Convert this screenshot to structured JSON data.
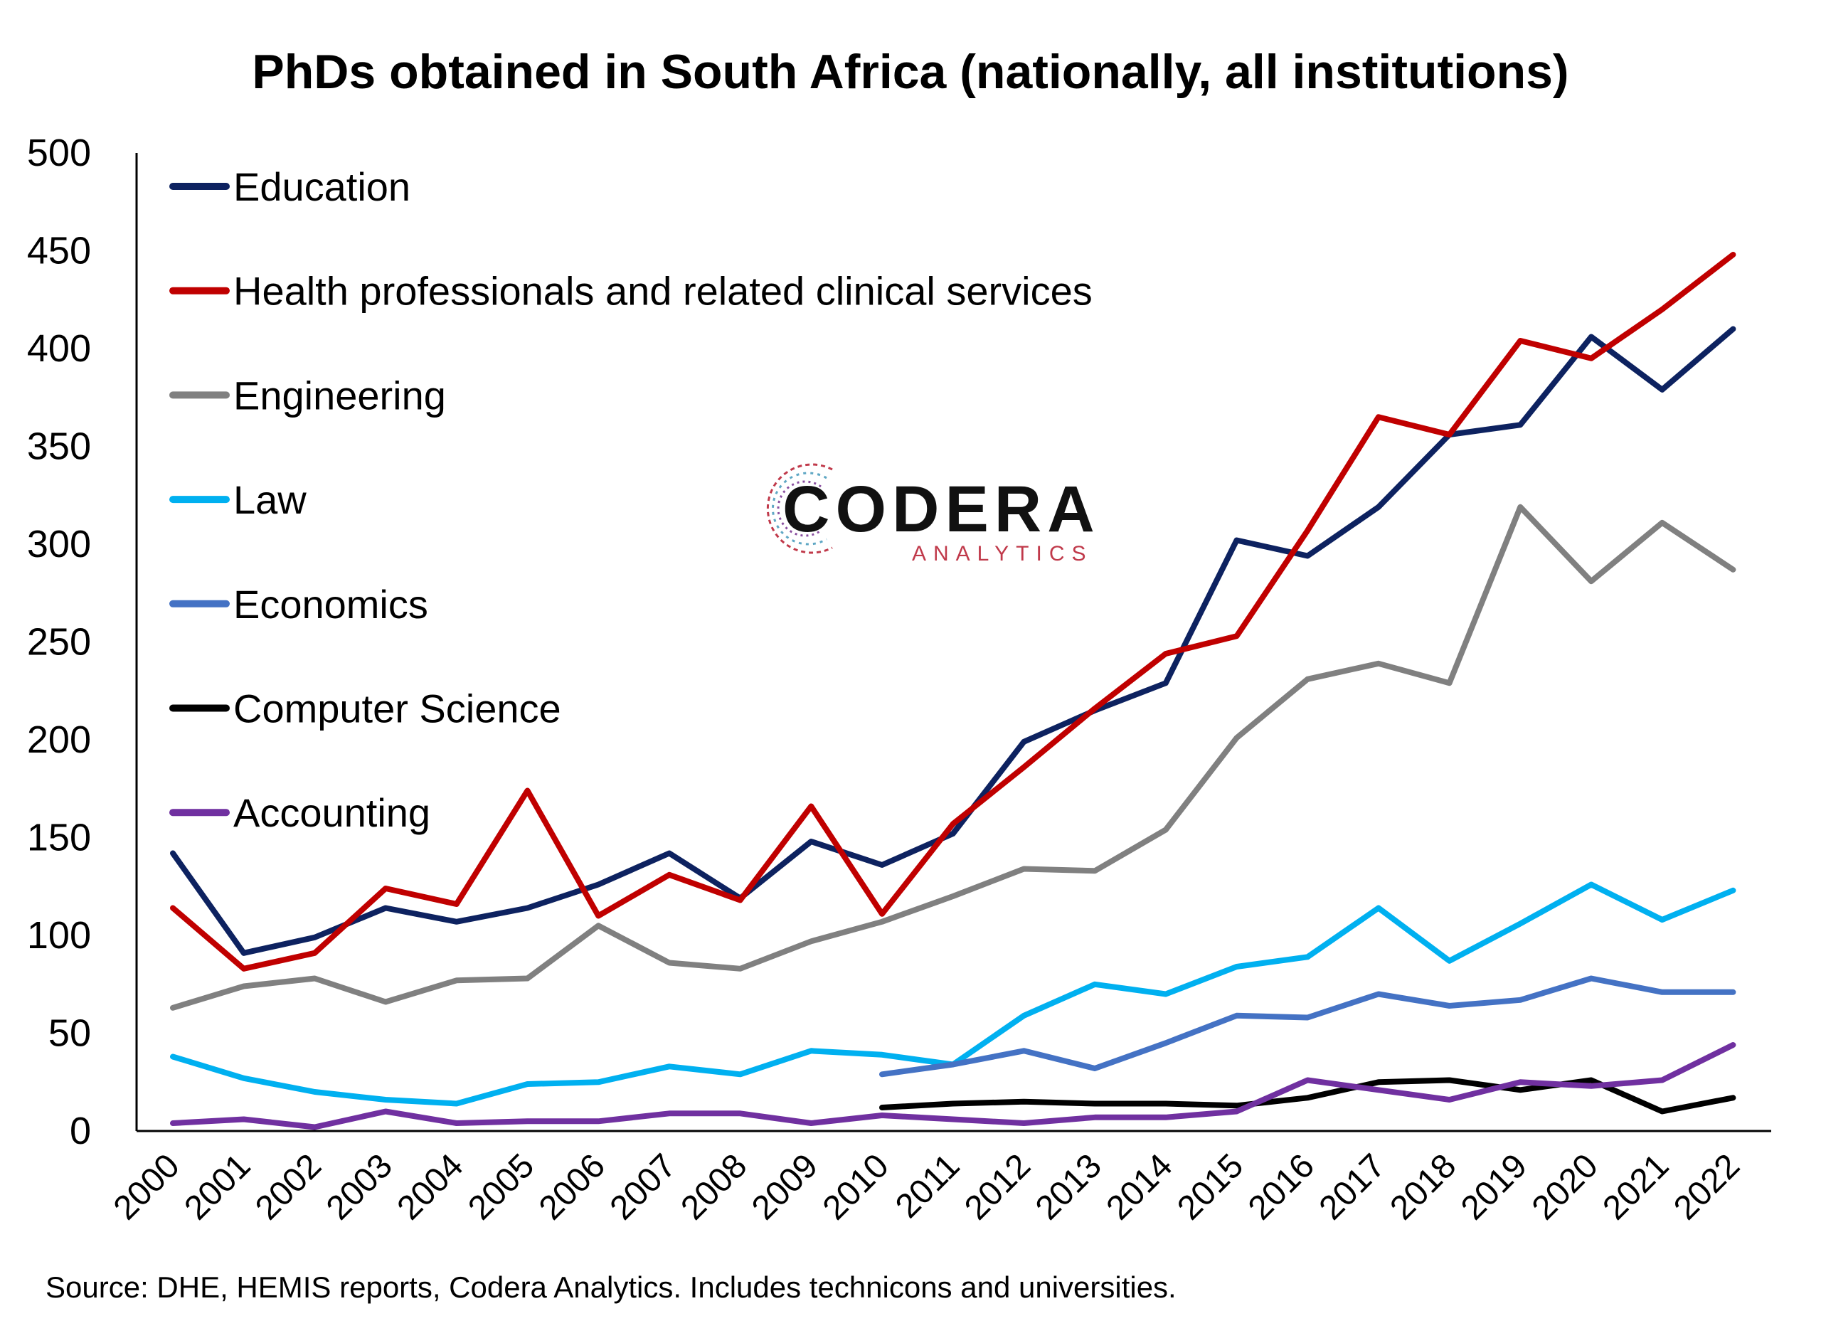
{
  "title": "PhDs obtained in South Africa (nationally, all institutions)",
  "source": "Source: DHE, HEMIS reports, Codera Analytics. Includes technicons and universities.",
  "logo": {
    "name": "CODERA",
    "sub": "ANALYTICS"
  },
  "chart_data": {
    "type": "line",
    "ylim": [
      0,
      500
    ],
    "yticks": [
      0,
      50,
      100,
      150,
      200,
      250,
      300,
      350,
      400,
      450,
      500
    ],
    "x": [
      "2000",
      "2001",
      "2002",
      "2003",
      "2004",
      "2005",
      "2006",
      "2007",
      "2008",
      "2009",
      "2010",
      "2011",
      "2012",
      "2013",
      "2014",
      "2015",
      "2016",
      "2017",
      "2018",
      "2019",
      "2020",
      "2021",
      "2022"
    ],
    "legend_position": "top-left",
    "grid": false,
    "series": [
      {
        "name": "Education",
        "color": "#0d2260",
        "values": [
          142,
          91,
          99,
          114,
          107,
          114,
          126,
          142,
          119,
          148,
          136,
          152,
          199,
          215,
          229,
          302,
          294,
          319,
          356,
          361,
          406,
          379,
          410
        ]
      },
      {
        "name": "Health professionals and related clinical services",
        "color": "#c00000",
        "values": [
          114,
          83,
          91,
          124,
          116,
          174,
          110,
          131,
          118,
          166,
          111,
          157,
          186,
          216,
          244,
          253,
          307,
          365,
          356,
          404,
          395,
          420,
          448
        ]
      },
      {
        "name": "Engineering",
        "color": "#808080",
        "values": [
          63,
          74,
          78,
          66,
          77,
          78,
          105,
          86,
          83,
          97,
          107,
          120,
          134,
          133,
          154,
          201,
          231,
          239,
          229,
          319,
          281,
          311,
          287
        ]
      },
      {
        "name": "Law",
        "color": "#00b0f0",
        "values": [
          38,
          27,
          20,
          16,
          14,
          24,
          25,
          33,
          29,
          41,
          39,
          34,
          59,
          75,
          70,
          84,
          89,
          114,
          87,
          106,
          126,
          108,
          123
        ]
      },
      {
        "name": "Economics",
        "color": "#4472c4",
        "values": [
          null,
          null,
          null,
          null,
          null,
          null,
          null,
          null,
          null,
          null,
          29,
          34,
          41,
          32,
          45,
          59,
          58,
          70,
          64,
          67,
          78,
          71,
          71
        ]
      },
      {
        "name": "Computer Science",
        "color": "#000000",
        "values": [
          null,
          null,
          null,
          null,
          null,
          null,
          null,
          null,
          null,
          null,
          12,
          14,
          15,
          14,
          14,
          13,
          17,
          25,
          26,
          21,
          26,
          10,
          17
        ]
      },
      {
        "name": "Accounting",
        "color": "#7030a0",
        "values": [
          4,
          6,
          2,
          10,
          4,
          5,
          5,
          9,
          9,
          4,
          8,
          6,
          4,
          7,
          7,
          10,
          26,
          21,
          16,
          25,
          23,
          26,
          44
        ]
      }
    ]
  }
}
